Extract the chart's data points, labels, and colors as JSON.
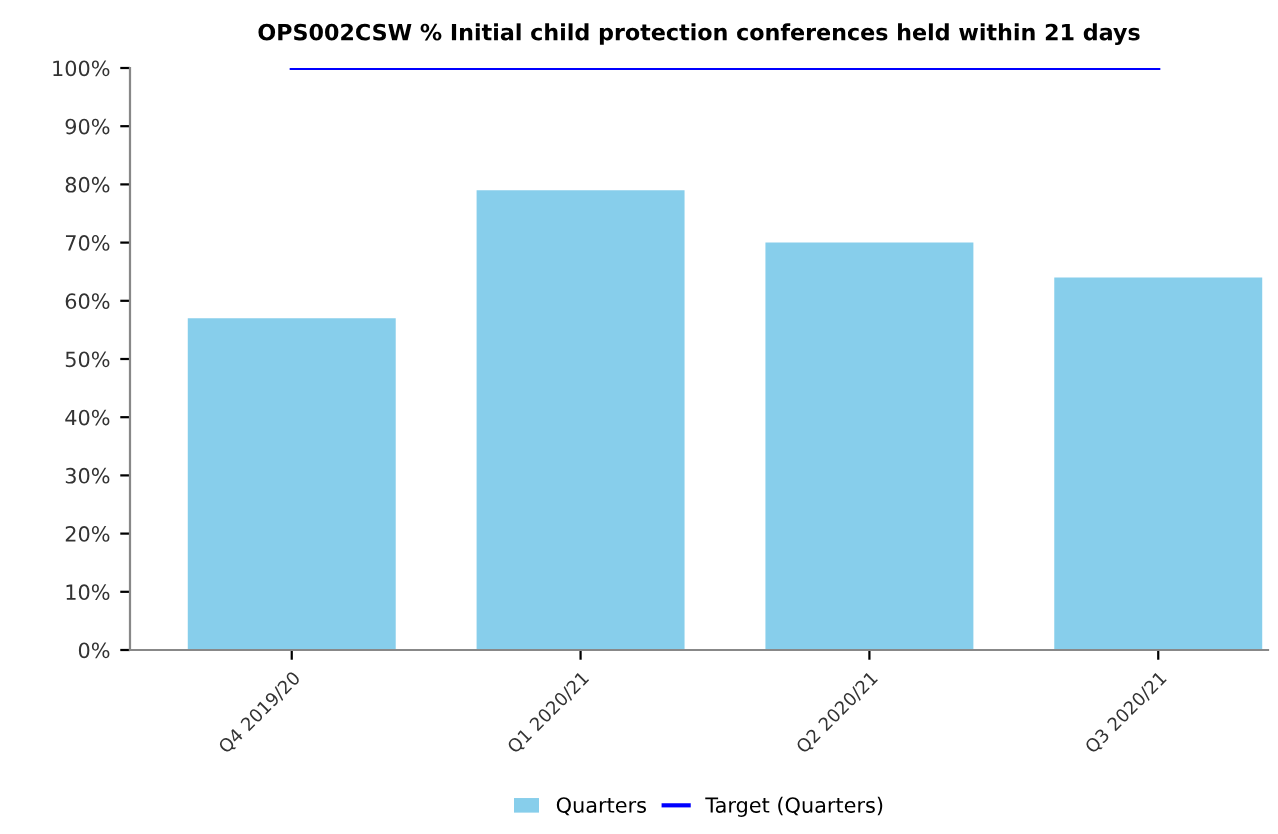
{
  "chart_data": {
    "type": "bar",
    "title": "OPS002CSW % Initial child protection conferences held within 21 days",
    "categories": [
      "Q4 2019/20",
      "Q1 2020/21",
      "Q2 2020/21",
      "Q3 2020/21"
    ],
    "series": [
      {
        "name": "Quarters",
        "color": "#87ceeb",
        "values": [
          57,
          79,
          70,
          64
        ]
      },
      {
        "name": "Target (Quarters)",
        "type": "line",
        "color": "#0000ff",
        "values": [
          100,
          100,
          100,
          100
        ]
      }
    ],
    "ylim": [
      0,
      100
    ],
    "yticks": [
      {
        "value": 0,
        "label": "0%"
      },
      {
        "value": 10,
        "label": "10%"
      },
      {
        "value": 20,
        "label": "20%"
      },
      {
        "value": 30,
        "label": "30%"
      },
      {
        "value": 40,
        "label": "40%"
      },
      {
        "value": 50,
        "label": "50%"
      },
      {
        "value": 60,
        "label": "60%"
      },
      {
        "value": 70,
        "label": "70%"
      },
      {
        "value": 80,
        "label": "80%"
      },
      {
        "value": 90,
        "label": "90%"
      },
      {
        "value": 100,
        "label": "100%"
      }
    ],
    "grid": false,
    "legend": "bottom"
  }
}
